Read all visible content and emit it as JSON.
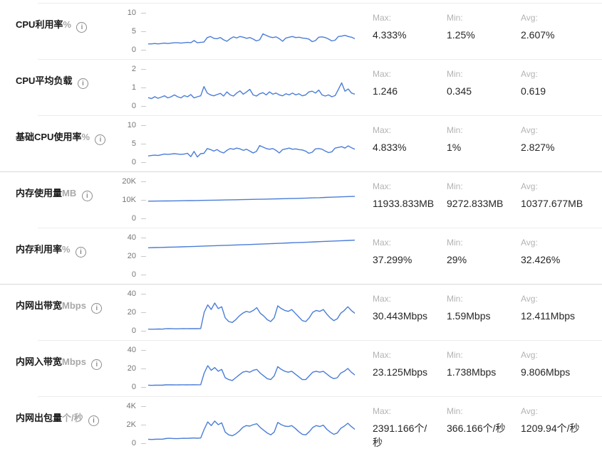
{
  "theme": {
    "line_color": "#4a7dd8",
    "row_divider": "#ececec",
    "group_divider": "#d8d8d8"
  },
  "icons": {
    "info": "i"
  },
  "labels": {
    "max": "Max:",
    "min": "Min:",
    "avg": "Avg:"
  },
  "rows": [
    {
      "label": "CPU利用率",
      "unit": "%",
      "ticks": [
        "10",
        "5",
        "0"
      ],
      "stats": {
        "max": "4.333%",
        "min": "1.25%",
        "avg": "2.607%"
      }
    },
    {
      "label": "CPU平均负载",
      "unit": "",
      "ticks": [
        "2",
        "1",
        "0"
      ],
      "stats": {
        "max": "1.246",
        "min": "0.345",
        "avg": "0.619"
      }
    },
    {
      "label": "基础CPU使用率",
      "unit": "%",
      "ticks": [
        "10",
        "5",
        "0"
      ],
      "stats": {
        "max": "4.833%",
        "min": "1%",
        "avg": "2.827%"
      }
    },
    {
      "label": "内存使用量",
      "unit": "MB",
      "ticks": [
        "20K",
        "10K",
        "0"
      ],
      "stats": {
        "max": "11933.833MB",
        "min": "9272.833MB",
        "avg": "10377.677MB"
      }
    },
    {
      "label": "内存利用率",
      "unit": "%",
      "ticks": [
        "40",
        "20",
        "0"
      ],
      "stats": {
        "max": "37.299%",
        "min": "29%",
        "avg": "32.426%"
      }
    },
    {
      "label": "内网出带宽",
      "unit": "Mbps",
      "ticks": [
        "40",
        "20",
        "0"
      ],
      "stats": {
        "max": "30.443Mbps",
        "min": "1.59Mbps",
        "avg": "12.411Mbps"
      }
    },
    {
      "label": "内网入带宽",
      "unit": "Mbps",
      "ticks": [
        "40",
        "20",
        "0"
      ],
      "stats": {
        "max": "23.125Mbps",
        "min": "1.738Mbps",
        "avg": "9.806Mbps"
      }
    },
    {
      "label": "内网出包量",
      "unit": "个/秒",
      "ticks": [
        "4K",
        "2K",
        "0"
      ],
      "stats": {
        "max": "2391.166个/秒",
        "min": "366.166个/秒",
        "avg": "1209.94个/秒"
      }
    }
  ],
  "chart_data": [
    {
      "type": "line",
      "title": "CPU利用率%",
      "ylim": [
        0,
        10
      ],
      "yticks": [
        0,
        5,
        10
      ],
      "stats": {
        "max": 4.333,
        "min": 1.25,
        "avg": 2.607
      },
      "values": [
        1.6,
        1.6,
        1.7,
        1.6,
        1.7,
        1.8,
        1.7,
        1.8,
        1.9,
        1.9,
        1.8,
        1.9,
        2.0,
        1.9,
        2.5,
        1.9,
        2.0,
        2.1,
        3.3,
        3.6,
        3.1,
        3.0,
        3.3,
        2.7,
        2.3,
        3.0,
        3.5,
        3.2,
        3.6,
        3.4,
        3.1,
        3.3,
        2.9,
        2.4,
        2.7,
        4.3,
        3.9,
        3.5,
        3.3,
        3.5,
        3.0,
        2.3,
        3.2,
        3.4,
        3.6,
        3.3,
        3.4,
        3.2,
        3.1,
        2.9,
        2.2,
        2.5,
        3.4,
        3.5,
        3.3,
        2.9,
        2.4,
        2.6,
        3.6,
        3.7,
        3.9,
        3.6,
        3.4,
        3.0
      ]
    },
    {
      "type": "line",
      "title": "CPU平均负载",
      "ylim": [
        0,
        2
      ],
      "yticks": [
        0,
        1,
        2
      ],
      "stats": {
        "max": 1.246,
        "min": 0.345,
        "avg": 0.619
      },
      "values": [
        0.45,
        0.4,
        0.5,
        0.42,
        0.48,
        0.55,
        0.44,
        0.5,
        0.6,
        0.5,
        0.44,
        0.56,
        0.5,
        0.62,
        0.44,
        0.5,
        0.55,
        1.05,
        0.7,
        0.6,
        0.55,
        0.62,
        0.68,
        0.54,
        0.76,
        0.6,
        0.54,
        0.7,
        0.82,
        0.64,
        0.76,
        0.9,
        0.6,
        0.54,
        0.66,
        0.72,
        0.6,
        0.76,
        0.64,
        0.7,
        0.6,
        0.55,
        0.66,
        0.6,
        0.7,
        0.6,
        0.66,
        0.55,
        0.6,
        0.76,
        0.8,
        0.7,
        0.86,
        0.6,
        0.54,
        0.6,
        0.5,
        0.56,
        0.9,
        1.25,
        0.8,
        0.92,
        0.7,
        0.64
      ]
    },
    {
      "type": "line",
      "title": "基础CPU使用率%",
      "ylim": [
        0,
        10
      ],
      "yticks": [
        0,
        5,
        10
      ],
      "stats": {
        "max": 4.833,
        "min": 1,
        "avg": 2.827
      },
      "values": [
        1.7,
        1.8,
        1.9,
        1.8,
        2.0,
        2.2,
        2.1,
        2.2,
        2.3,
        2.2,
        2.1,
        2.2,
        2.4,
        1.5,
        2.9,
        1.4,
        2.3,
        2.4,
        3.7,
        3.4,
        3.0,
        3.4,
        2.8,
        2.5,
        3.2,
        3.7,
        3.5,
        3.8,
        3.6,
        3.2,
        3.5,
        3.0,
        2.5,
        2.9,
        4.5,
        4.1,
        3.7,
        3.5,
        3.7,
        3.2,
        2.5,
        3.4,
        3.6,
        3.8,
        3.5,
        3.6,
        3.4,
        3.3,
        3.0,
        2.4,
        2.7,
        3.6,
        3.7,
        3.5,
        3.0,
        2.6,
        2.8,
        3.8,
        4.0,
        4.2,
        3.8,
        4.4,
        3.9,
        3.5
      ]
    },
    {
      "type": "line",
      "title": "内存使用量MB",
      "ylim": [
        0,
        20000
      ],
      "yticks": [
        0,
        10000,
        20000
      ],
      "stats": {
        "max": 11933.833,
        "min": 9272.833,
        "avg": 10377.677
      },
      "values": [
        9300,
        9330,
        9380,
        9420,
        9460,
        9500,
        9560,
        9610,
        9670,
        9720,
        9780,
        9840,
        9900,
        9960,
        10020,
        10090,
        10150,
        10220,
        10290,
        10360,
        10430,
        10500,
        10580,
        10660,
        10740,
        10820,
        10900,
        11000,
        11100,
        11200,
        11330,
        11450,
        11570,
        11700,
        11800,
        11900
      ]
    },
    {
      "type": "line",
      "title": "内存利用率%",
      "ylim": [
        0,
        40
      ],
      "yticks": [
        0,
        20,
        40
      ],
      "stats": {
        "max": 37.299,
        "min": 29,
        "avg": 32.426
      },
      "values": [
        29,
        29.2,
        29.4,
        29.6,
        29.8,
        30,
        30.2,
        30.5,
        30.7,
        31,
        31.2,
        31.5,
        31.7,
        32,
        32.2,
        32.5,
        32.8,
        33,
        33.3,
        33.6,
        33.9,
        34.2,
        34.5,
        34.8,
        35.1,
        35.4,
        35.7,
        36,
        36.3,
        36.6,
        36.9,
        37.2
      ]
    },
    {
      "type": "line",
      "title": "内网出带宽Mbps",
      "ylim": [
        0,
        40
      ],
      "yticks": [
        0,
        20,
        40
      ],
      "stats": {
        "max": 30.443,
        "min": 1.59,
        "avg": 12.411
      },
      "values": [
        1.8,
        1.7,
        1.8,
        1.9,
        1.8,
        2.2,
        2.4,
        2.2,
        2.1,
        2.2,
        2.3,
        2.2,
        2.3,
        2.4,
        2.3,
        2.4,
        20,
        28,
        23,
        30,
        24,
        26,
        14,
        10,
        9,
        12,
        16,
        19,
        21,
        20,
        22,
        25,
        19,
        16,
        12,
        10,
        14,
        27,
        24,
        22,
        21,
        23,
        19,
        15,
        11,
        10,
        14,
        20,
        22,
        21,
        23,
        18,
        14,
        11,
        13,
        19,
        22,
        26,
        22,
        19
      ]
    },
    {
      "type": "line",
      "title": "内网入带宽Mbps",
      "ylim": [
        0,
        40
      ],
      "yticks": [
        0,
        20,
        40
      ],
      "stats": {
        "max": 23.125,
        "min": 1.738,
        "avg": 9.806
      },
      "values": [
        1.9,
        1.8,
        1.9,
        2.0,
        1.9,
        2.3,
        2.4,
        2.3,
        2.2,
        2.3,
        2.4,
        2.3,
        2.4,
        2.5,
        2.4,
        2.5,
        15,
        23,
        18,
        21,
        17,
        19,
        10,
        8,
        7,
        10,
        13,
        16,
        17,
        16,
        18,
        19,
        15,
        12,
        9,
        8,
        12,
        22,
        19,
        17,
        16,
        17,
        14,
        11,
        8,
        8,
        12,
        16,
        17,
        16,
        17,
        14,
        11,
        9,
        10,
        15,
        17,
        20,
        16,
        13
      ]
    },
    {
      "type": "line",
      "title": "内网出包量个/秒",
      "ylim": [
        0,
        4000
      ],
      "yticks": [
        0,
        2000,
        4000
      ],
      "stats": {
        "max": 2391.166,
        "min": 366.166,
        "avg": 1209.94
      },
      "values": [
        420,
        400,
        420,
        440,
        430,
        500,
        530,
        510,
        490,
        510,
        530,
        520,
        540,
        560,
        540,
        560,
        1500,
        2300,
        1900,
        2390,
        2000,
        2200,
        1200,
        900,
        800,
        1000,
        1300,
        1700,
        1900,
        1850,
        2000,
        2100,
        1700,
        1400,
        1100,
        900,
        1200,
        2250,
        2000,
        1850,
        1800,
        1900,
        1600,
        1250,
        950,
        900,
        1250,
        1700,
        1900,
        1800,
        1950,
        1500,
        1200,
        950,
        1100,
        1600,
        1850,
        2150,
        1800,
        1500
      ]
    }
  ]
}
